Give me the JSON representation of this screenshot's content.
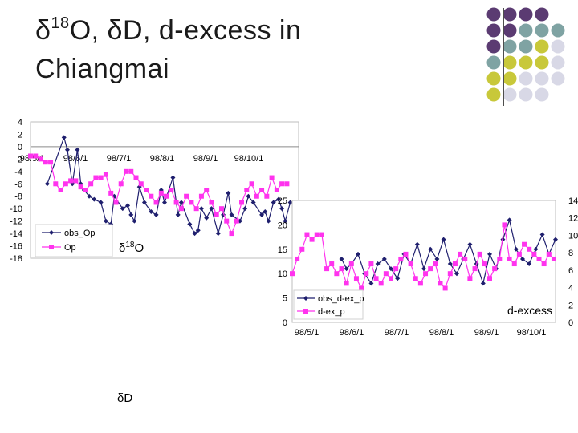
{
  "slide": {
    "title_line1_pre": "δ",
    "title_line1_sup": "18",
    "title_line1_post": "O, δD, d-excess in",
    "title_line2": "Chiangmai",
    "label_dd": "δD"
  },
  "colors": {
    "obs": "#1f1f6e",
    "model": "#ff33ee",
    "dot_purple": "#5b3b72",
    "dot_teal": "#7fa3a3",
    "dot_olive": "#c8c83a",
    "dot_lavender": "#d8d8e6"
  },
  "chart_data": [
    {
      "type": "line",
      "title": "δ18O",
      "ylim": [
        -18,
        4
      ],
      "yticks": [
        "4",
        "2",
        "0",
        "-2",
        "-4",
        "-6",
        "-8",
        "-10",
        "-12",
        "-14",
        "-16",
        "-18"
      ],
      "xtick_labels": [
        "98/5/1",
        "98/6/1",
        "98/7/1",
        "98/8/1",
        "98/9/1",
        "98/10/1"
      ],
      "legend": [
        "obs_Op",
        "Op"
      ],
      "series": [
        {
          "name": "obs_Op",
          "x": [
            10,
            20,
            22,
            25,
            28,
            30,
            32,
            35,
            38,
            42,
            45,
            48,
            50,
            55,
            58,
            60,
            62,
            65,
            68,
            72,
            75,
            78,
            80,
            85,
            88,
            90,
            95,
            98,
            100,
            102,
            105,
            108,
            112,
            115,
            118,
            120,
            125,
            128,
            130,
            133,
            138,
            140,
            142,
            145,
            148,
            150,
            152,
            155
          ],
          "y": [
            -6,
            1.5,
            -0.5,
            -6,
            -0.5,
            -6,
            -7,
            -8,
            -8.5,
            -9,
            -12,
            -12.5,
            -8,
            -10,
            -9.5,
            -11,
            -12,
            -6.5,
            -9,
            -10.5,
            -11,
            -7,
            -9,
            -5,
            -11,
            -9,
            -12.5,
            -14,
            -13.5,
            -10,
            -11.5,
            -10,
            -14,
            -11,
            -7.5,
            -11,
            -12,
            -10,
            -8,
            -9,
            -11,
            -10.5,
            -12,
            -9,
            -8.5,
            -10,
            -12,
            -9
          ]
        },
        {
          "name": "Op",
          "x": [
            0,
            3,
            6,
            9,
            12,
            15,
            18,
            21,
            24,
            27,
            30,
            33,
            36,
            39,
            42,
            45,
            48,
            51,
            54,
            57,
            60,
            63,
            66,
            69,
            72,
            75,
            78,
            81,
            84,
            87,
            90,
            93,
            96,
            99,
            102,
            105,
            108,
            111,
            114,
            117,
            120,
            123,
            126,
            129,
            132,
            135,
            138,
            141,
            144,
            147,
            150,
            153
          ],
          "y": [
            -1.5,
            -1.5,
            -2,
            -2.5,
            -2.5,
            -6,
            -7,
            -6,
            -5.5,
            -5.5,
            -6.5,
            -7,
            -6,
            -5,
            -5,
            -4.5,
            -7.5,
            -9,
            -6,
            -4,
            -4,
            -5,
            -6,
            -7,
            -8,
            -9,
            -7.5,
            -8,
            -7,
            -9,
            -10,
            -8,
            -9,
            -10,
            -8,
            -7,
            -9,
            -11,
            -10,
            -12,
            -14,
            -12,
            -9,
            -7,
            -6,
            -8,
            -7,
            -8,
            -5,
            -7,
            -6,
            -6
          ]
        }
      ]
    },
    {
      "type": "line",
      "title": "d-excess",
      "ylim_left": [
        0,
        25
      ],
      "ylim_right": [
        0,
        14
      ],
      "yticks_left": [
        "25",
        "20",
        "15",
        "10",
        "5",
        "0"
      ],
      "yticks_right": [
        "14",
        "12",
        "10",
        "8",
        "6",
        "4",
        "2",
        "0"
      ],
      "xtick_labels": [
        "98/5/1",
        "98/6/1",
        "98/7/1",
        "98/8/1",
        "98/9/1",
        "98/10/1"
      ],
      "legend": [
        "obs_d-ex_p",
        "d-ex_p"
      ],
      "series": [
        {
          "name": "obs_d-ex_p",
          "x": [
            30,
            33,
            36,
            40,
            44,
            48,
            52,
            56,
            60,
            64,
            68,
            72,
            76,
            80,
            84,
            88,
            92,
            96,
            100,
            104,
            108,
            112,
            116,
            120,
            124,
            128,
            132,
            136,
            140,
            144,
            148,
            152,
            156,
            160
          ],
          "y": [
            13,
            11,
            12,
            14,
            10,
            8,
            12,
            13,
            11,
            9,
            14,
            12,
            16,
            11,
            15,
            13,
            17,
            12,
            10,
            13,
            16,
            12,
            8,
            14,
            11,
            17,
            21,
            15,
            13,
            12,
            15,
            18,
            14,
            17
          ]
        },
        {
          "name": "d-ex_p",
          "x": [
            0,
            3,
            6,
            9,
            12,
            15,
            18,
            21,
            24,
            27,
            30,
            33,
            36,
            39,
            42,
            45,
            48,
            51,
            54,
            57,
            60,
            63,
            66,
            69,
            72,
            75,
            78,
            81,
            84,
            87,
            90,
            93,
            96,
            99,
            102,
            105,
            108,
            111,
            114,
            117,
            120,
            123,
            126,
            129,
            132,
            135,
            138,
            141,
            144,
            147,
            150,
            153,
            156,
            159
          ],
          "y": [
            10,
            13,
            15,
            18,
            17,
            18,
            18,
            11,
            12,
            10,
            11,
            8,
            12,
            9,
            7,
            10,
            12,
            9,
            8,
            10,
            9,
            11,
            13,
            14,
            12,
            9,
            8,
            10,
            11,
            12,
            8,
            7,
            10,
            12,
            14,
            13,
            9,
            11,
            14,
            12,
            9,
            11,
            13,
            20,
            13,
            12,
            14,
            16,
            15,
            14,
            13,
            12,
            14,
            13
          ]
        }
      ]
    }
  ]
}
